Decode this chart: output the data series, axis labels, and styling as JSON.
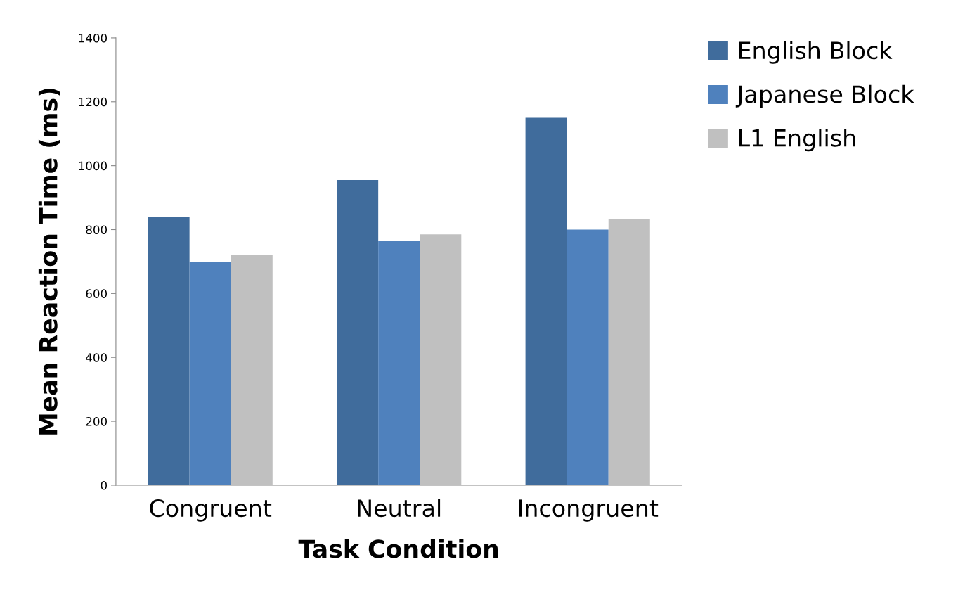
{
  "chart_data": {
    "type": "bar",
    "xlabel": "Task Condition",
    "ylabel": "Mean Reaction Time (ms)",
    "categories": [
      "Congruent",
      "Neutral",
      "Incongruent"
    ],
    "series": [
      {
        "name": "English Block",
        "color": "#406c9c",
        "values": [
          840,
          955,
          1150
        ]
      },
      {
        "name": "Japanese Block",
        "color": "#4f81bd",
        "values": [
          700,
          765,
          800
        ]
      },
      {
        "name": "L1 English",
        "color": "#c0c0c0",
        "values": [
          720,
          785,
          832
        ]
      }
    ],
    "ylim": [
      0,
      1400
    ],
    "yticks": [
      0,
      200,
      400,
      600,
      800,
      1000,
      1200,
      1400
    ],
    "grid": false,
    "legend": "top right"
  }
}
